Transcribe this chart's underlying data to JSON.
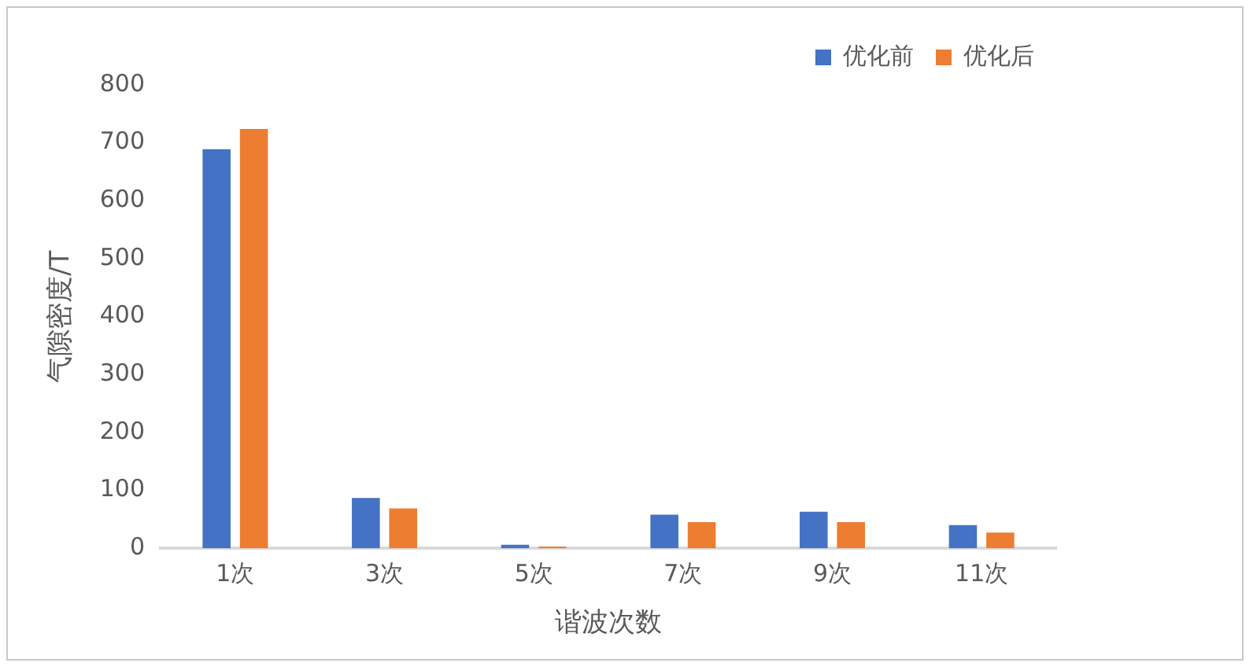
{
  "chart_data": {
    "type": "bar",
    "xlabel": "谐波次数",
    "ylabel": "气隙密度/T",
    "categories": [
      "1次",
      "3次",
      "5次",
      "7次",
      "9次",
      "11次"
    ],
    "series": [
      {
        "name": "优化前",
        "color": "#4472c4",
        "values": [
          689,
          87,
          6,
          58,
          63,
          40
        ]
      },
      {
        "name": "优化后",
        "color": "#ed7d31",
        "values": [
          724,
          69,
          3,
          45,
          45,
          27
        ]
      }
    ],
    "ylim": [
      0,
      800
    ],
    "yticks": [
      0,
      100,
      200,
      300,
      400,
      500,
      600,
      700,
      800
    ],
    "grid": false,
    "legend": "top right"
  }
}
